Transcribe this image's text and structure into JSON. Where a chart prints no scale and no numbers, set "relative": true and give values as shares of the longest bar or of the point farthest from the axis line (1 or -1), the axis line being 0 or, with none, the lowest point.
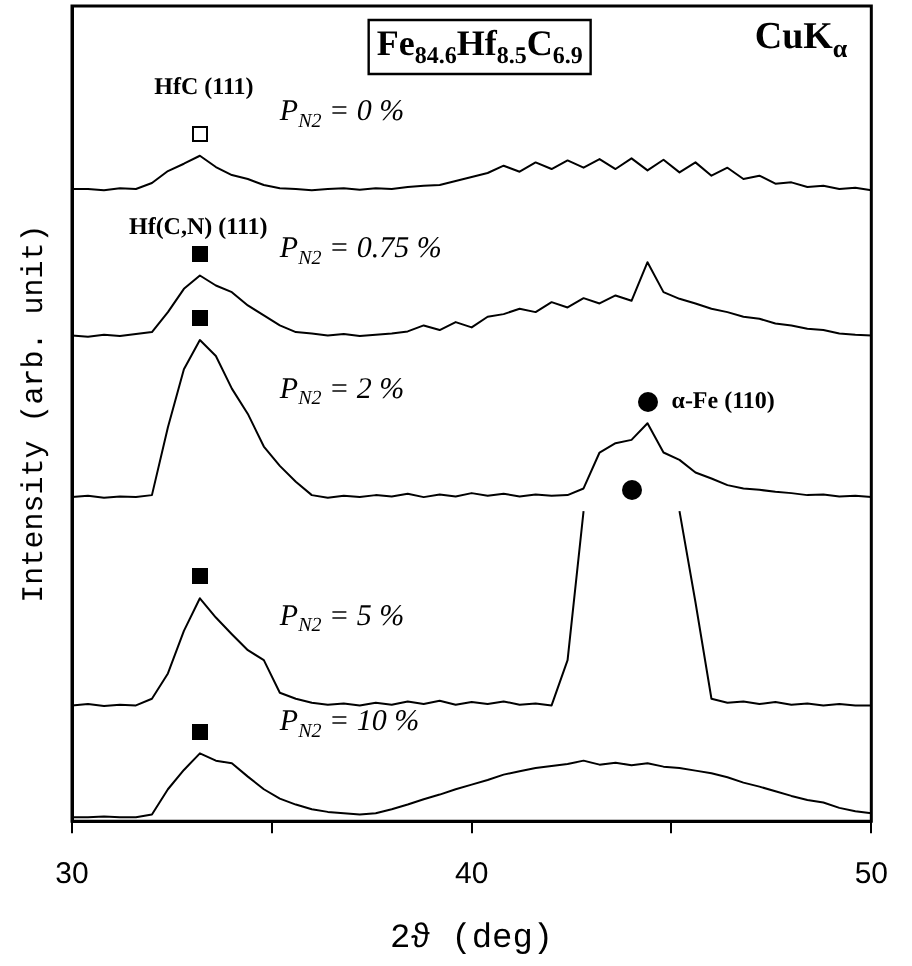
{
  "chart_data": {
    "type": "line",
    "title": "Fe$_{84.6}$Hf$_{8.5}$C$_{6.9}$",
    "xlabel": "2ϑ (deg)",
    "ylabel": "Intensity (arb. unit)",
    "relative": true,
    "legend": "left",
    "xlim": [
      30,
      50
    ],
    "xticks": [
      30,
      {
        "value": 35,
        "label": null
      },
      40,
      {
        "value": 45,
        "label": null
      },
      50
    ],
    "x": [
      30,
      30.4,
      30.8,
      31.2,
      31.6,
      32,
      32.4,
      32.8,
      33.2,
      33.6,
      34,
      34.4,
      34.8,
      35.2,
      35.6,
      36,
      36.4,
      36.8,
      37.2,
      37.6,
      38,
      38.4,
      38.8,
      39.2,
      39.6,
      40,
      40.4,
      40.8,
      41.2,
      41.6,
      42,
      42.4,
      42.8,
      43.2,
      43.6,
      44,
      44.4,
      44.8,
      45.2,
      45.6,
      46,
      46.4,
      46.8,
      47.2,
      47.6,
      48,
      48.4,
      48.8,
      49.2,
      49.6,
      50
    ],
    "series": [
      {
        "name": "P$_{N2}$ = 0 %",
        "color": "#000000",
        "values": [
          0.95,
          0.95,
          0.948,
          0.951,
          0.95,
          0.959,
          0.977,
          0.988,
          1.0,
          0.983,
          0.971,
          0.965,
          0.956,
          0.951,
          0.95,
          0.948,
          0.95,
          0.951,
          0.949,
          0.951,
          0.95,
          0.953,
          0.955,
          0.956,
          0.962,
          0.968,
          0.974,
          0.985,
          0.976,
          0.99,
          0.98,
          0.993,
          0.982,
          0.995,
          0.98,
          0.996,
          0.978,
          0.994,
          0.975,
          0.99,
          0.97,
          0.982,
          0.965,
          0.97,
          0.958,
          0.96,
          0.953,
          0.955,
          0.95,
          0.952,
          0.948
        ]
      },
      {
        "name": "P$_{N2}$ = 0.75 %",
        "color": "#000000",
        "values": [
          0.73,
          0.728,
          0.731,
          0.729,
          0.732,
          0.735,
          0.765,
          0.8,
          0.82,
          0.805,
          0.795,
          0.775,
          0.76,
          0.745,
          0.735,
          0.733,
          0.73,
          0.732,
          0.729,
          0.731,
          0.733,
          0.736,
          0.745,
          0.738,
          0.75,
          0.742,
          0.758,
          0.762,
          0.77,
          0.765,
          0.78,
          0.772,
          0.786,
          0.778,
          0.79,
          0.782,
          0.84,
          0.795,
          0.785,
          0.778,
          0.77,
          0.765,
          0.758,
          0.755,
          0.748,
          0.745,
          0.74,
          0.738,
          0.733,
          0.731,
          0.73
        ]
      },
      {
        "name": "P$_{N2}$ = 2 %",
        "color": "#000000",
        "values": [
          0.487,
          0.489,
          0.486,
          0.488,
          0.487,
          0.49,
          0.592,
          0.679,
          0.723,
          0.699,
          0.65,
          0.612,
          0.563,
          0.534,
          0.51,
          0.49,
          0.486,
          0.489,
          0.487,
          0.49,
          0.488,
          0.492,
          0.487,
          0.491,
          0.488,
          0.493,
          0.489,
          0.492,
          0.488,
          0.491,
          0.489,
          0.49,
          0.5,
          0.554,
          0.568,
          0.573,
          0.598,
          0.554,
          0.543,
          0.524,
          0.515,
          0.505,
          0.5,
          0.498,
          0.495,
          0.493,
          0.49,
          0.491,
          0.488,
          0.489,
          0.487
        ]
      },
      {
        "name": "P$_{N2}$ = 5 %",
        "color": "#000000",
        "values": [
          0.174,
          0.176,
          0.173,
          0.175,
          0.174,
          0.184,
          0.222,
          0.286,
          0.335,
          0.306,
          0.281,
          0.257,
          0.242,
          0.193,
          0.184,
          0.178,
          0.175,
          0.177,
          0.174,
          0.178,
          0.175,
          0.18,
          0.176,
          0.181,
          0.175,
          0.179,
          0.176,
          0.18,
          0.175,
          0.177,
          0.174,
          0.242,
          0.466,
          null,
          null,
          null,
          null,
          null,
          0.466,
          0.329,
          0.184,
          0.178,
          0.18,
          0.176,
          0.179,
          0.175,
          0.177,
          0.174,
          0.176,
          0.174,
          0.174
        ]
      },
      {
        "name": "P$_{N2}$ = 10 %",
        "color": "#000000",
        "values": [
          0.006,
          0.006,
          0.007,
          0.006,
          0.006,
          0.01,
          0.048,
          0.077,
          0.102,
          0.091,
          0.087,
          0.067,
          0.048,
          0.034,
          0.025,
          0.018,
          0.014,
          0.012,
          0.01,
          0.012,
          0.018,
          0.025,
          0.033,
          0.04,
          0.048,
          0.055,
          0.062,
          0.07,
          0.075,
          0.08,
          0.083,
          0.086,
          0.091,
          0.085,
          0.088,
          0.084,
          0.087,
          0.082,
          0.08,
          0.076,
          0.072,
          0.066,
          0.058,
          0.052,
          0.045,
          0.038,
          0.032,
          0.028,
          0.02,
          0.015,
          0.012
        ]
      }
    ],
    "annotations": [
      "CuK$_{α}$",
      "HfC (111)",
      "Hf(C,N) (111)",
      "α-Fe (110)"
    ]
  }
}
